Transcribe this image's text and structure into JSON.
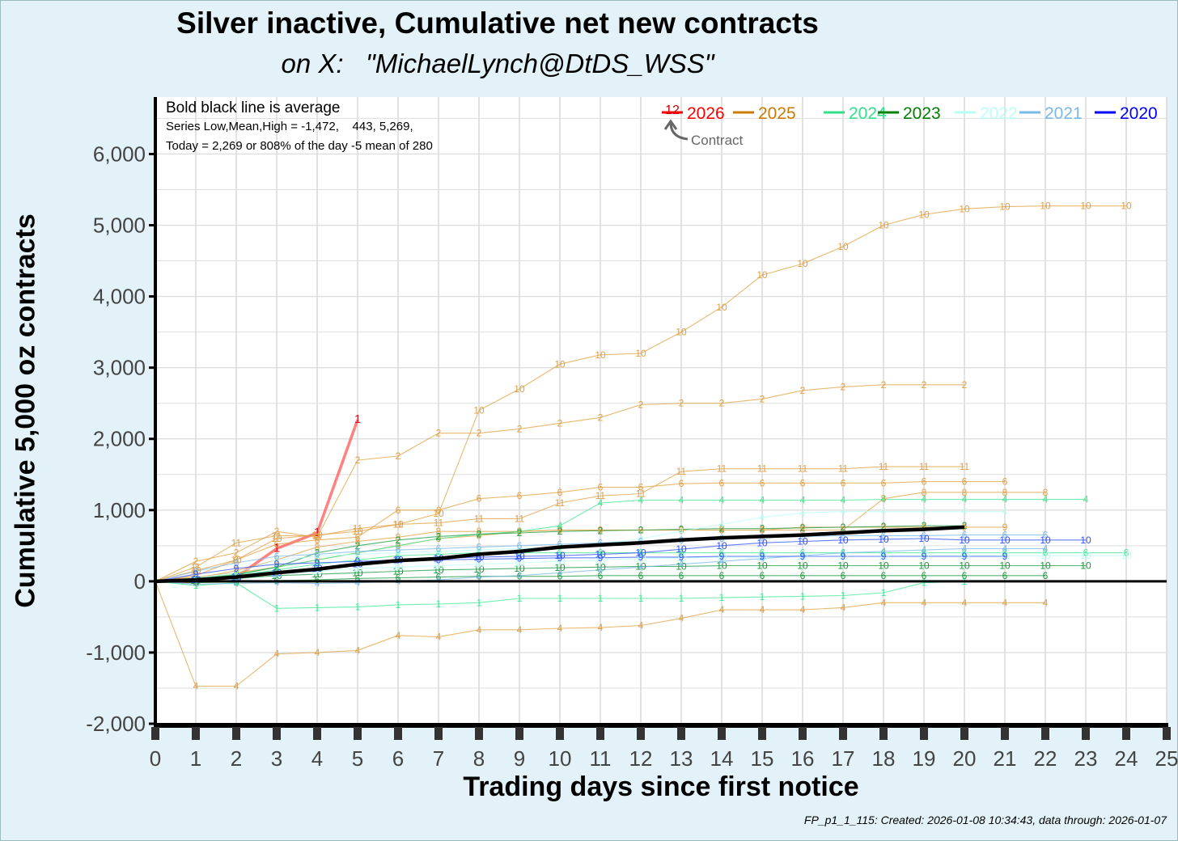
{
  "chart_data": {
    "type": "line",
    "title": "Silver inactive, Cumulative net new contracts",
    "subtitle": "on X:   \"MichaelLynch@DtDS_WSS\"",
    "xlabel": "Trading days since first notice",
    "ylabel": "Cumulative 5,000 oz contracts",
    "xlim": [
      0,
      25
    ],
    "ylim": [
      -2000,
      6800
    ],
    "x_ticks": [
      0,
      1,
      2,
      3,
      4,
      5,
      6,
      7,
      8,
      9,
      10,
      11,
      12,
      13,
      14,
      15,
      16,
      17,
      18,
      19,
      20,
      21,
      22,
      23,
      24,
      25
    ],
    "y_ticks": [
      {
        "value": -2000,
        "label": "-2,000"
      },
      {
        "value": -1000,
        "label": "-1,000"
      },
      {
        "value": 0,
        "label": "0"
      },
      {
        "value": 1000,
        "label": "1,000"
      },
      {
        "value": 2000,
        "label": "2,000"
      },
      {
        "value": 3000,
        "label": "3,000"
      },
      {
        "value": 4000,
        "label": "4,000"
      },
      {
        "value": 5000,
        "label": "5,000"
      },
      {
        "value": 6000,
        "label": "6,000"
      }
    ],
    "grid": true,
    "annotation_lines": [
      "Bold black line is average",
      "Series Low,Mean,High = -1,472,    443, 5,269,",
      "Today = 2,269 or 808% of the day -5 mean of 280"
    ],
    "legend": {
      "position": "top-right",
      "items": [
        {
          "label": "2026",
          "color": "#ff0000",
          "marker": "12"
        },
        {
          "label": "2025",
          "color": "#cc7a00"
        },
        {
          "label": "2024",
          "color": "#33e08a"
        },
        {
          "label": "2023",
          "color": "#008000"
        },
        {
          "label": "2022",
          "color": "#b8fff5"
        },
        {
          "label": "2021",
          "color": "#7ab8e8"
        },
        {
          "label": "2020",
          "color": "#0000ff"
        }
      ],
      "callout": "Contract"
    },
    "average": {
      "name": "Average",
      "color": "#000000",
      "x": [
        0,
        1,
        2,
        3,
        4,
        5,
        6,
        7,
        8,
        9,
        10,
        11,
        12,
        13,
        14,
        15,
        16,
        17,
        18,
        19,
        20
      ],
      "y": [
        0,
        20,
        60,
        120,
        170,
        240,
        290,
        320,
        380,
        420,
        480,
        510,
        540,
        580,
        610,
        630,
        650,
        680,
        710,
        730,
        760
      ]
    },
    "series": [
      {
        "name": "2026 contract 1",
        "year": "2026",
        "contract": "1",
        "color": "#ff6b6b",
        "bold": true,
        "x": [
          0,
          1,
          2,
          3,
          4,
          5
        ],
        "y": [
          0,
          -10,
          60,
          460,
          680,
          2269
        ]
      },
      {
        "name": "2025 contract 10",
        "year": "2025",
        "contract": "10",
        "color": "#e0a040",
        "x": [
          0,
          1,
          2,
          3,
          4,
          5,
          6,
          7,
          8,
          9,
          10,
          11,
          12,
          13,
          14,
          15,
          16,
          17,
          18,
          19,
          20,
          21,
          22,
          23,
          24
        ],
        "y": [
          0,
          150,
          300,
          600,
          650,
          700,
          800,
          950,
          2400,
          2700,
          3050,
          3180,
          3200,
          3500,
          3850,
          4300,
          4460,
          4700,
          5000,
          5150,
          5230,
          5260,
          5270,
          5270,
          5270
        ]
      },
      {
        "name": "2025 contract 2",
        "year": "2025",
        "contract": "2",
        "color": "#e0a040",
        "x": [
          0,
          1,
          2,
          3,
          4,
          5,
          6,
          7,
          8,
          9,
          10,
          11,
          12,
          13,
          14,
          15,
          16,
          17,
          18,
          19,
          20
        ],
        "y": [
          0,
          280,
          400,
          700,
          620,
          1700,
          1760,
          2080,
          2080,
          2140,
          2220,
          2300,
          2480,
          2500,
          2500,
          2560,
          2680,
          2730,
          2760,
          2760,
          2760
        ]
      },
      {
        "name": "2025 contract 11",
        "year": "2025",
        "contract": "11",
        "color": "#e0a040",
        "x": [
          0,
          1,
          2,
          3,
          4,
          5,
          6,
          7,
          8,
          9,
          10,
          11,
          12,
          13,
          14,
          15,
          16,
          17,
          18,
          19,
          20
        ],
        "y": [
          0,
          200,
          540,
          640,
          640,
          740,
          800,
          820,
          880,
          880,
          1100,
          1200,
          1230,
          1540,
          1580,
          1580,
          1580,
          1580,
          1610,
          1610,
          1610
        ]
      },
      {
        "name": "2025 contract 6",
        "year": "2025",
        "contract": "6",
        "color": "#e0a040",
        "x": [
          0,
          1,
          2,
          3,
          4,
          5,
          6,
          7,
          8,
          9,
          10,
          11,
          12,
          13,
          14,
          15,
          16,
          17,
          18,
          19,
          20,
          21
        ],
        "y": [
          0,
          80,
          300,
          520,
          580,
          620,
          1000,
          1000,
          1160,
          1200,
          1250,
          1320,
          1320,
          1370,
          1380,
          1380,
          1380,
          1380,
          1380,
          1400,
          1400,
          1400
        ]
      },
      {
        "name": "2025 contract 8",
        "year": "2025",
        "contract": "8",
        "color": "#e0a040",
        "x": [
          0,
          1,
          2,
          3,
          4,
          5,
          6,
          7,
          8,
          9,
          10,
          11,
          12,
          13,
          14,
          15,
          16,
          17,
          18,
          19,
          20,
          21,
          22
        ],
        "y": [
          0,
          40,
          150,
          300,
          480,
          560,
          620,
          700,
          700,
          700,
          720,
          720,
          720,
          720,
          720,
          720,
          720,
          720,
          1160,
          1250,
          1250,
          1250,
          1250
        ]
      },
      {
        "name": "2025 contract 4",
        "year": "2025",
        "contract": "4",
        "color": "#e0a040",
        "x": [
          0,
          1,
          2,
          3,
          4,
          5,
          6,
          7,
          8,
          9,
          10,
          11,
          12,
          13,
          14,
          15,
          16,
          17,
          18,
          19,
          20,
          21,
          22
        ],
        "y": [
          0,
          -1472,
          -1472,
          -1020,
          -1000,
          -970,
          -760,
          -780,
          -680,
          -680,
          -660,
          -650,
          -620,
          -520,
          -400,
          -400,
          -400,
          -370,
          -300,
          -300,
          -300,
          -300,
          -300
        ]
      },
      {
        "name": "2025 contract 9",
        "year": "2025",
        "contract": "9",
        "color": "#e0a040",
        "x": [
          0,
          1,
          2,
          3,
          4,
          5,
          6,
          7,
          8,
          9,
          10,
          11,
          12,
          13,
          14,
          15,
          16,
          17,
          18,
          19,
          20,
          21
        ],
        "y": [
          0,
          60,
          120,
          200,
          300,
          400,
          500,
          600,
          640,
          700,
          720,
          720,
          720,
          720,
          720,
          720,
          760,
          760,
          760,
          760,
          760,
          760
        ]
      },
      {
        "name": "2024 contract 4",
        "year": "2024",
        "contract": "4",
        "color": "#40e890",
        "x": [
          0,
          1,
          2,
          3,
          4,
          5,
          6,
          7,
          8,
          9,
          10,
          11,
          12,
          13,
          14,
          15,
          16,
          17,
          18,
          19,
          20,
          21,
          22,
          23
        ],
        "y": [
          0,
          40,
          100,
          200,
          300,
          400,
          500,
          600,
          660,
          700,
          780,
          1100,
          1140,
          1140,
          1140,
          1140,
          1140,
          1140,
          1150,
          1150,
          1150,
          1150,
          1150,
          1150
        ]
      },
      {
        "name": "2024 contract 1",
        "year": "2024",
        "contract": "1",
        "color": "#40e890",
        "x": [
          0,
          1,
          2,
          3,
          4,
          5,
          6,
          7,
          8,
          9,
          10,
          11,
          12,
          13,
          14,
          15,
          16,
          17,
          18,
          19,
          20
        ],
        "y": [
          0,
          -60,
          -20,
          -380,
          -370,
          -360,
          -330,
          -320,
          -300,
          -240,
          -240,
          -240,
          -240,
          -240,
          -230,
          -220,
          -210,
          -200,
          -160,
          -20,
          0
        ]
      },
      {
        "name": "2024 contract 6",
        "year": "2024",
        "contract": "6",
        "color": "#40e890",
        "x": [
          0,
          1,
          2,
          3,
          4,
          5,
          6,
          7,
          8,
          9,
          10,
          11,
          12,
          13,
          14,
          15,
          16,
          17,
          18,
          19,
          20,
          21,
          22,
          23,
          24
        ],
        "y": [
          0,
          30,
          80,
          160,
          240,
          300,
          360,
          380,
          400,
          400,
          400,
          400,
          400,
          400,
          400,
          400,
          400,
          400,
          400,
          400,
          400,
          400,
          400,
          400,
          400
        ]
      },
      {
        "name": "2023 contract 2",
        "year": "2023",
        "contract": "2",
        "color": "#1a9a40",
        "x": [
          0,
          1,
          2,
          3,
          4,
          5,
          6,
          7,
          8,
          9,
          10,
          11,
          12,
          13,
          14,
          15,
          16,
          17,
          18,
          19,
          20
        ],
        "y": [
          0,
          30,
          90,
          200,
          400,
          500,
          580,
          630,
          660,
          680,
          700,
          710,
          720,
          730,
          740,
          740,
          750,
          760,
          770,
          780,
          780
        ]
      },
      {
        "name": "2023 contract 10",
        "year": "2023",
        "contract": "10",
        "color": "#1a9a40",
        "x": [
          0,
          1,
          2,
          3,
          4,
          5,
          6,
          7,
          8,
          9,
          10,
          11,
          12,
          13,
          14,
          15,
          16,
          17,
          18,
          19,
          20,
          21,
          22,
          23
        ],
        "y": [
          0,
          10,
          40,
          80,
          100,
          120,
          140,
          160,
          170,
          180,
          190,
          200,
          210,
          210,
          220,
          220,
          220,
          220,
          220,
          220,
          220,
          220,
          220,
          220
        ]
      },
      {
        "name": "2023 contract 6",
        "year": "2023",
        "contract": "6",
        "color": "#1a9a40",
        "x": [
          0,
          1,
          2,
          3,
          4,
          5,
          6,
          7,
          8,
          9,
          10,
          11,
          12,
          13,
          14,
          15,
          16,
          17,
          18,
          19,
          20,
          21,
          22
        ],
        "y": [
          0,
          -20,
          -10,
          10,
          20,
          40,
          50,
          60,
          70,
          70,
          70,
          80,
          80,
          80,
          80,
          80,
          80,
          80,
          80,
          80,
          80,
          80,
          80
        ]
      },
      {
        "name": "2022 contract 4",
        "year": "2022",
        "contract": "4",
        "color": "#b8fff5",
        "x": [
          0,
          1,
          2,
          3,
          4,
          5,
          6,
          7,
          8,
          9,
          10,
          11,
          12,
          13,
          14,
          15,
          16,
          17,
          18,
          19,
          20,
          21
        ],
        "y": [
          0,
          50,
          120,
          300,
          350,
          380,
          400,
          420,
          440,
          460,
          480,
          520,
          600,
          700,
          800,
          900,
          960,
          980,
          980,
          980,
          980,
          980
        ]
      },
      {
        "name": "2022 contract 10",
        "year": "2022",
        "contract": "10",
        "color": "#b8fff5",
        "x": [
          0,
          1,
          2,
          3,
          4,
          5,
          6,
          7,
          8,
          9,
          10,
          11,
          12,
          13,
          14,
          15,
          16,
          17,
          18,
          19,
          20,
          21,
          22,
          23,
          24
        ],
        "y": [
          0,
          20,
          60,
          100,
          140,
          180,
          200,
          220,
          240,
          260,
          280,
          300,
          320,
          330,
          340,
          340,
          350,
          350,
          350,
          360,
          360,
          360,
          360,
          360,
          360
        ]
      },
      {
        "name": "2021 contract 4",
        "year": "2021",
        "contract": "4",
        "color": "#7ab8e8",
        "x": [
          0,
          1,
          2,
          3,
          4,
          5,
          6,
          7,
          8,
          9,
          10,
          11,
          12,
          13,
          14,
          15,
          16,
          17,
          18,
          19,
          20,
          21,
          22
        ],
        "y": [
          0,
          -40,
          -30,
          -20,
          -30,
          -20,
          0,
          20,
          60,
          80,
          120,
          160,
          200,
          240,
          280,
          320,
          360,
          400,
          420,
          440,
          460,
          460,
          460
        ]
      },
      {
        "name": "2021 contract 6",
        "year": "2021",
        "contract": "6",
        "color": "#7ab8e8",
        "x": [
          0,
          1,
          2,
          3,
          4,
          5,
          6,
          7,
          8,
          9,
          10,
          11,
          12,
          13,
          14,
          15,
          16,
          17,
          18,
          19,
          20,
          21,
          22
        ],
        "y": [
          0,
          140,
          260,
          350,
          380,
          420,
          440,
          460,
          480,
          500,
          520,
          540,
          560,
          580,
          600,
          620,
          630,
          640,
          640,
          640,
          650,
          650,
          650
        ]
      },
      {
        "name": "2020 contract 10",
        "year": "2020",
        "contract": "10",
        "color": "#3050ff",
        "x": [
          0,
          1,
          2,
          3,
          4,
          5,
          6,
          7,
          8,
          9,
          10,
          11,
          12,
          13,
          14,
          15,
          16,
          17,
          18,
          19,
          20,
          21,
          22,
          23
        ],
        "y": [
          0,
          20,
          60,
          120,
          180,
          240,
          300,
          320,
          340,
          350,
          360,
          380,
          400,
          450,
          500,
          540,
          560,
          580,
          590,
          600,
          580,
          580,
          580,
          580
        ]
      },
      {
        "name": "2020 contract 9",
        "year": "2020",
        "contract": "9",
        "color": "#3050ff",
        "x": [
          0,
          1,
          2,
          3,
          4,
          5,
          6,
          7,
          8,
          9,
          10,
          11,
          12,
          13,
          14,
          15,
          16,
          17,
          18,
          19,
          20,
          21
        ],
        "y": [
          0,
          100,
          180,
          240,
          260,
          280,
          300,
          300,
          310,
          320,
          330,
          330,
          340,
          340,
          350,
          350,
          350,
          350,
          350,
          350,
          350,
          350
        ]
      }
    ]
  },
  "footer": "FP_p1_1_115: Created: 2026-01-08 10:34:43, data through: 2026-01-07"
}
